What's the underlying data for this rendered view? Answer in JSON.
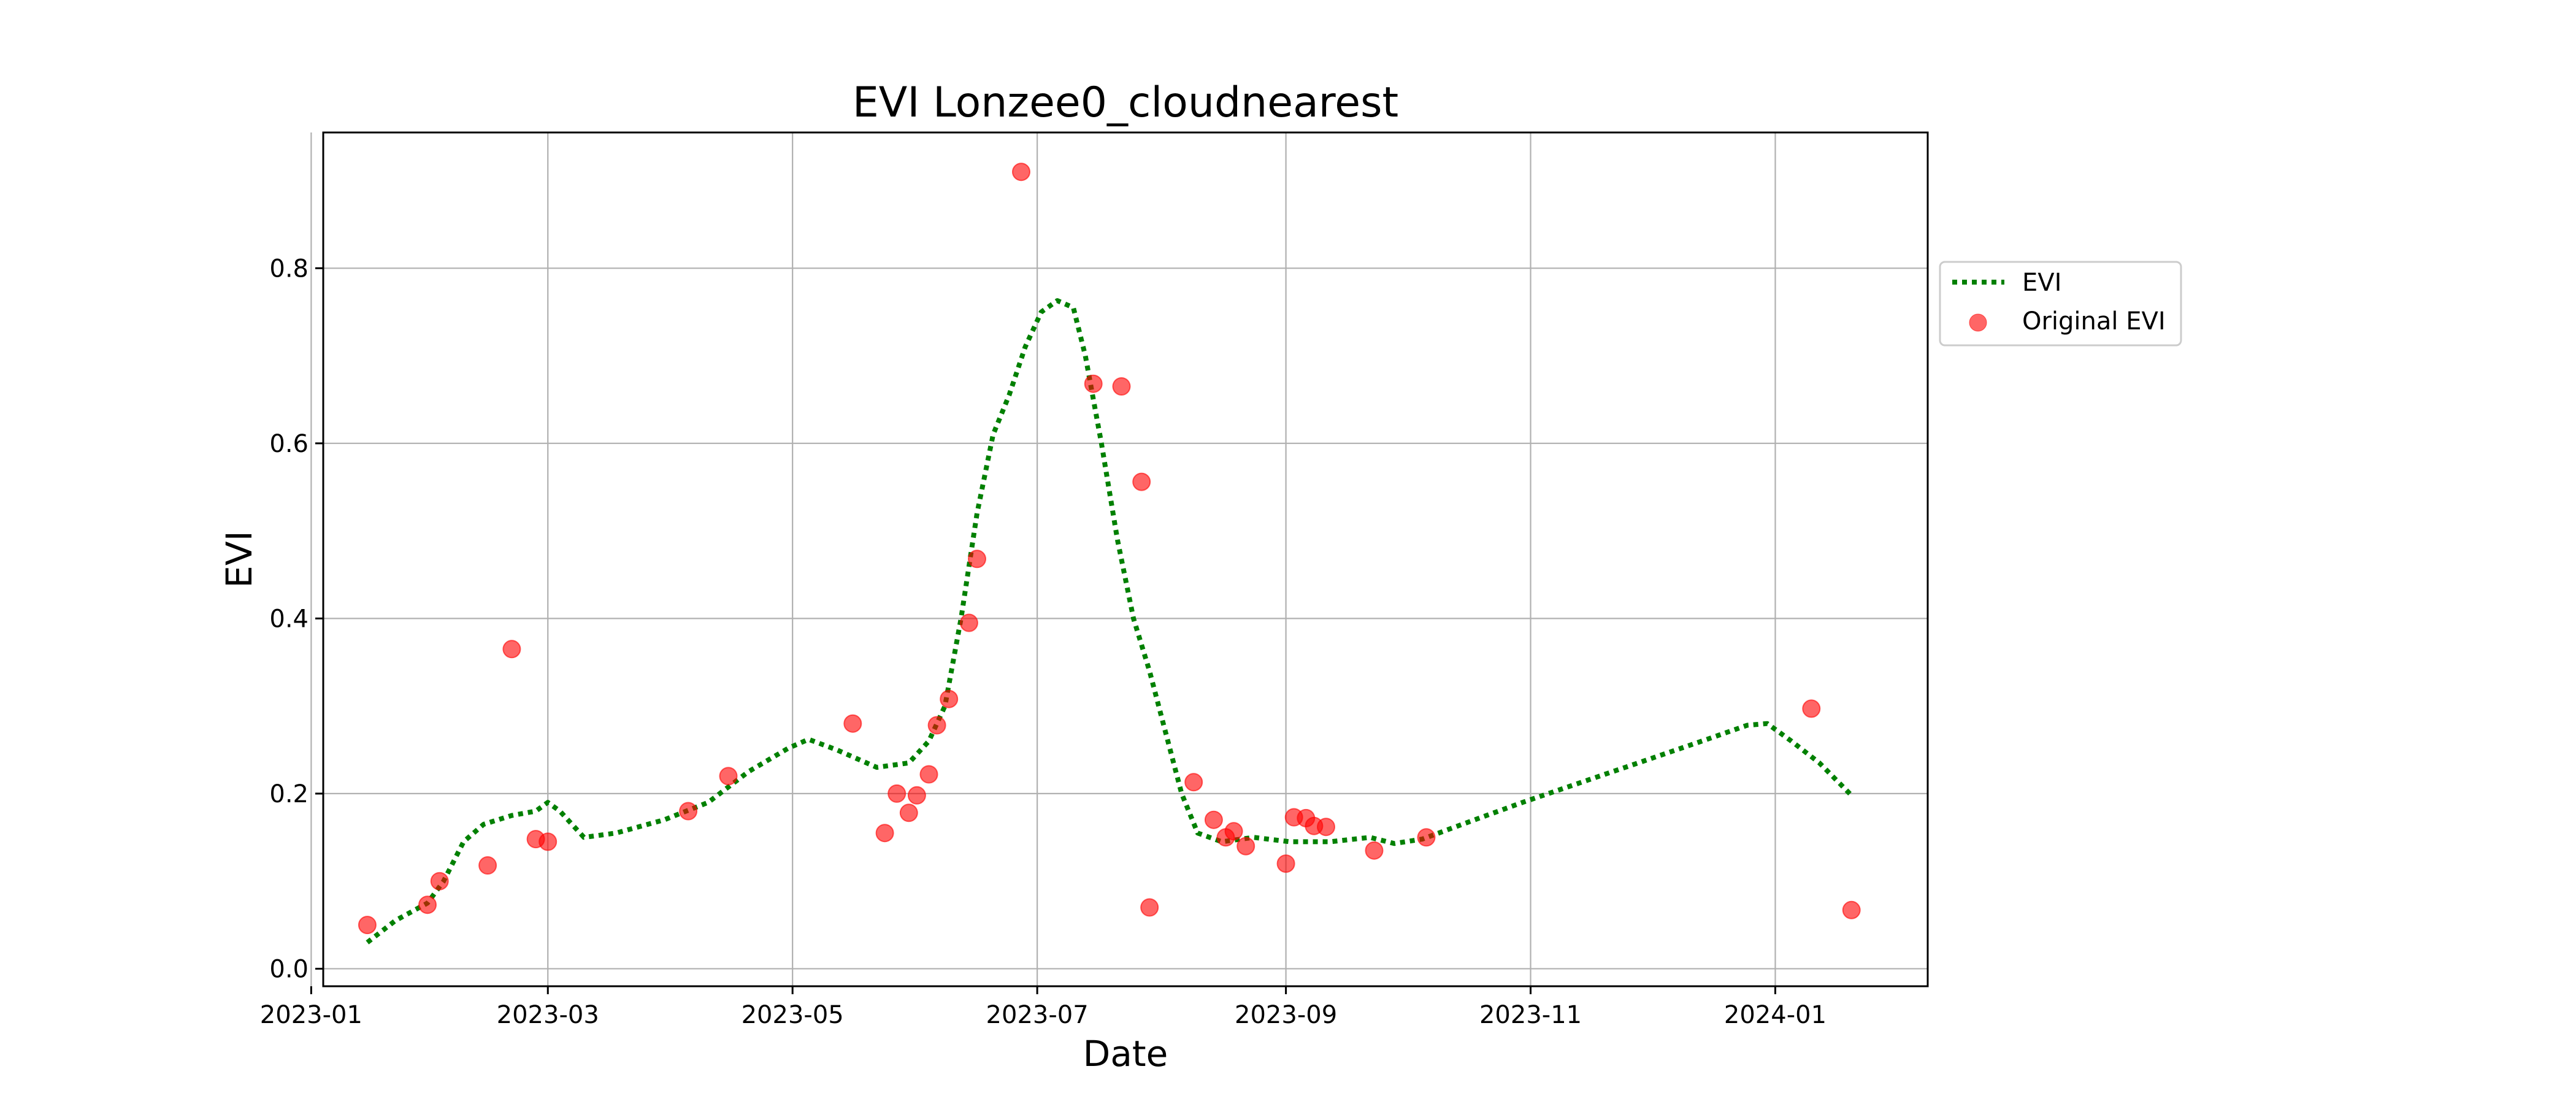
{
  "chart_data": {
    "type": "line",
    "title": "EVI Lonzee0_cloudnearest",
    "xlabel": "Date",
    "ylabel": "EVI",
    "x_axis_type": "date",
    "xlim": [
      "2023-01-04",
      "2024-02-08"
    ],
    "ylim": [
      -0.02,
      0.955
    ],
    "grid": true,
    "legend_placement": "outside right, upper",
    "x_ticks": [
      "2023-01",
      "2023-03",
      "2023-05",
      "2023-07",
      "2023-09",
      "2023-11",
      "2024-01"
    ],
    "y_ticks": [
      0.0,
      0.2,
      0.4,
      0.6,
      0.8
    ],
    "y_tick_labels": [
      "0.0",
      "0.2",
      "0.4",
      "0.6",
      "0.8"
    ],
    "series": [
      {
        "name": "EVI",
        "kind": "line",
        "style": "dotted",
        "color": "#008000",
        "points": [
          [
            "2023-01-15",
            0.03
          ],
          [
            "2023-01-22",
            0.055
          ],
          [
            "2023-01-30",
            0.075
          ],
          [
            "2023-02-03",
            0.1
          ],
          [
            "2023-02-08",
            0.145
          ],
          [
            "2023-02-13",
            0.165
          ],
          [
            "2023-02-20",
            0.175
          ],
          [
            "2023-02-26",
            0.18
          ],
          [
            "2023-03-01",
            0.19
          ],
          [
            "2023-03-04",
            0.18
          ],
          [
            "2023-03-10",
            0.15
          ],
          [
            "2023-03-18",
            0.155
          ],
          [
            "2023-03-30",
            0.17
          ],
          [
            "2023-04-10",
            0.19
          ],
          [
            "2023-04-20",
            0.225
          ],
          [
            "2023-04-30",
            0.252
          ],
          [
            "2023-05-05",
            0.262
          ],
          [
            "2023-05-12",
            0.25
          ],
          [
            "2023-05-22",
            0.23
          ],
          [
            "2023-05-30",
            0.235
          ],
          [
            "2023-06-04",
            0.26
          ],
          [
            "2023-06-08",
            0.3
          ],
          [
            "2023-06-12",
            0.4
          ],
          [
            "2023-06-16",
            0.52
          ],
          [
            "2023-06-20",
            0.61
          ],
          [
            "2023-06-24",
            0.655
          ],
          [
            "2023-06-28",
            0.71
          ],
          [
            "2023-07-02",
            0.75
          ],
          [
            "2023-07-06",
            0.763
          ],
          [
            "2023-07-10",
            0.755
          ],
          [
            "2023-07-13",
            0.7
          ],
          [
            "2023-07-17",
            0.6
          ],
          [
            "2023-07-21",
            0.49
          ],
          [
            "2023-07-25",
            0.4
          ],
          [
            "2023-07-29",
            0.34
          ],
          [
            "2023-08-02",
            0.27
          ],
          [
            "2023-08-06",
            0.2
          ],
          [
            "2023-08-10",
            0.155
          ],
          [
            "2023-08-16",
            0.145
          ],
          [
            "2023-08-24",
            0.15
          ],
          [
            "2023-09-02",
            0.145
          ],
          [
            "2023-09-12",
            0.145
          ],
          [
            "2023-09-22",
            0.15
          ],
          [
            "2023-09-28",
            0.143
          ],
          [
            "2023-10-05",
            0.148
          ],
          [
            "2023-10-15",
            0.165
          ],
          [
            "2023-10-30",
            0.19
          ],
          [
            "2023-11-15",
            0.215
          ],
          [
            "2023-12-01",
            0.24
          ],
          [
            "2023-12-15",
            0.262
          ],
          [
            "2023-12-25",
            0.278
          ],
          [
            "2023-12-30",
            0.28
          ],
          [
            "2024-01-05",
            0.26
          ],
          [
            "2024-01-12",
            0.235
          ],
          [
            "2024-01-20",
            0.198
          ]
        ]
      },
      {
        "name": "Original EVI",
        "kind": "scatter",
        "color": "#ff0000",
        "points": [
          [
            "2023-01-15",
            0.05
          ],
          [
            "2023-01-30",
            0.073
          ],
          [
            "2023-02-02",
            0.1
          ],
          [
            "2023-02-14",
            0.118
          ],
          [
            "2023-02-20",
            0.365
          ],
          [
            "2023-02-26",
            0.148
          ],
          [
            "2023-03-01",
            0.145
          ],
          [
            "2023-04-05",
            0.18
          ],
          [
            "2023-04-15",
            0.22
          ],
          [
            "2023-05-16",
            0.28
          ],
          [
            "2023-05-24",
            0.155
          ],
          [
            "2023-05-27",
            0.2
          ],
          [
            "2023-05-30",
            0.178
          ],
          [
            "2023-06-01",
            0.198
          ],
          [
            "2023-06-04",
            0.222
          ],
          [
            "2023-06-06",
            0.278
          ],
          [
            "2023-06-09",
            0.308
          ],
          [
            "2023-06-14",
            0.395
          ],
          [
            "2023-06-16",
            0.468
          ],
          [
            "2023-06-27",
            0.91
          ],
          [
            "2023-07-15",
            0.668
          ],
          [
            "2023-07-22",
            0.665
          ],
          [
            "2023-07-27",
            0.556
          ],
          [
            "2023-07-29",
            0.07
          ],
          [
            "2023-08-09",
            0.213
          ],
          [
            "2023-08-14",
            0.17
          ],
          [
            "2023-08-17",
            0.15
          ],
          [
            "2023-08-19",
            0.157
          ],
          [
            "2023-08-22",
            0.14
          ],
          [
            "2023-09-01",
            0.12
          ],
          [
            "2023-09-03",
            0.173
          ],
          [
            "2023-09-06",
            0.172
          ],
          [
            "2023-09-08",
            0.163
          ],
          [
            "2023-09-11",
            0.162
          ],
          [
            "2023-09-23",
            0.135
          ],
          [
            "2023-10-06",
            0.15
          ],
          [
            "2024-01-10",
            0.297
          ],
          [
            "2024-01-20",
            0.067
          ]
        ]
      }
    ]
  }
}
